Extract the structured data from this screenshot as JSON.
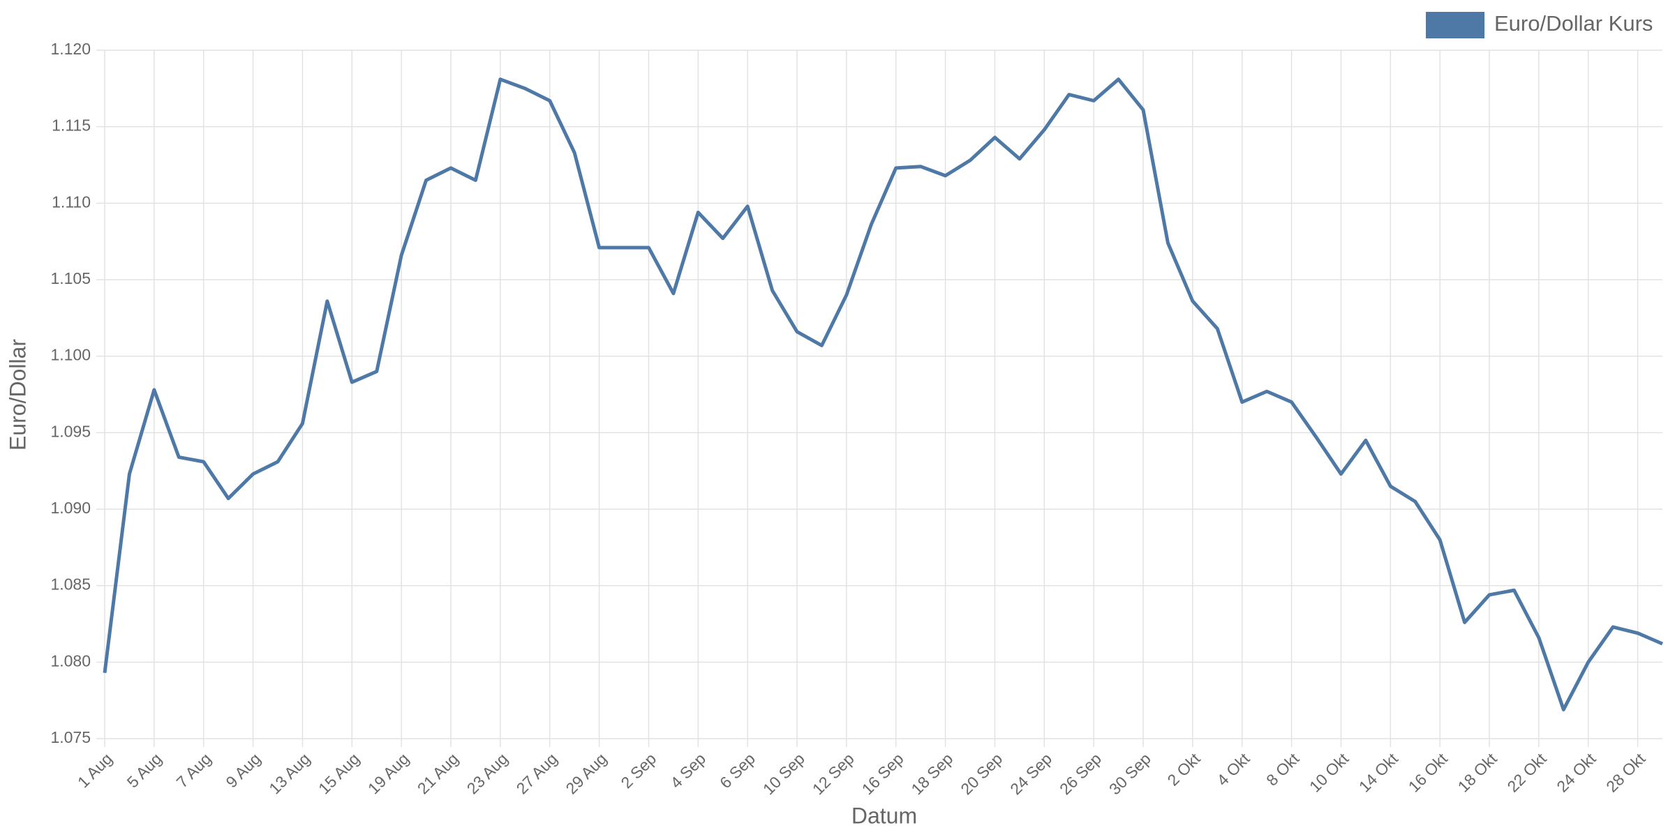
{
  "chart_data": {
    "type": "line",
    "x_label": "Datum",
    "y_label": "Euro/Dollar",
    "categories": [
      "1 Aug",
      null,
      "5 Aug",
      null,
      "7 Aug",
      null,
      "9 Aug",
      null,
      "13 Aug",
      null,
      "15 Aug",
      null,
      "19 Aug",
      null,
      "21 Aug",
      null,
      "23 Aug",
      null,
      "27 Aug",
      null,
      "29 Aug",
      null,
      "2 Sep",
      null,
      "4 Sep",
      null,
      "6 Sep",
      null,
      "10 Sep",
      null,
      "12 Sep",
      null,
      "16 Sep",
      null,
      "18 Sep",
      null,
      "20 Sep",
      null,
      "24 Sep",
      null,
      "26 Sep",
      null,
      "30 Sep",
      null,
      "2 Okt",
      null,
      "4 Okt",
      null,
      "8 Okt",
      null,
      "10 Okt",
      null,
      "14 Okt",
      null,
      "16 Okt",
      null,
      "18 Okt",
      null,
      "22 Okt",
      null,
      "24 Okt",
      null,
      "28 Okt",
      null
    ],
    "series": [
      {
        "name": "Euro/Dollar Kurs",
        "color": "#4e79a7",
        "values": [
          1.0793,
          1.0923,
          1.0978,
          1.0934,
          1.0931,
          1.0907,
          1.0923,
          1.0931,
          1.0956,
          1.1036,
          1.0983,
          1.099,
          1.1066,
          1.1115,
          1.1123,
          1.1115,
          1.1181,
          1.1175,
          1.1167,
          1.1133,
          1.1071,
          1.1071,
          1.1071,
          1.1041,
          1.1094,
          1.1077,
          1.1098,
          1.1043,
          1.1016,
          1.1007,
          1.104,
          1.1086,
          1.1123,
          1.1124,
          1.1118,
          1.1128,
          1.1143,
          1.1129,
          1.1148,
          1.1171,
          1.1167,
          1.1181,
          1.1161,
          1.1074,
          1.1036,
          1.1018,
          1.097,
          1.0977,
          1.097,
          1.0947,
          1.0923,
          1.0945,
          1.0915,
          1.0905,
          1.088,
          1.0826,
          1.0844,
          1.0847,
          1.0816,
          1.0769,
          1.08,
          1.0823,
          1.0819,
          1.0812
        ]
      }
    ],
    "ylim": [
      1.075,
      1.12
    ],
    "yticks": [
      1.075,
      {
        "value": 1.08,
        "label": "1.080"
      },
      1.085,
      {
        "value": 1.09,
        "label": "1.090"
      },
      1.095,
      {
        "value": 1.1,
        "label": "1.100"
      },
      1.105,
      {
        "value": 1.11,
        "label": "1.110"
      },
      1.115,
      {
        "value": 1.12,
        "label": "1.120"
      }
    ],
    "grid": true,
    "legend": "top-right"
  }
}
